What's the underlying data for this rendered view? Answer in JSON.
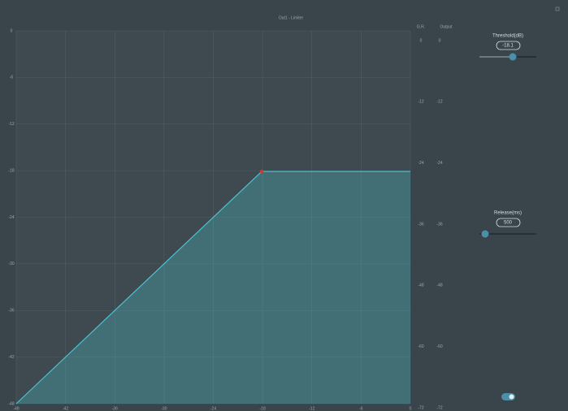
{
  "chart_data": {
    "type": "line",
    "title": "Out1 - Limiter",
    "x": [
      -48,
      -18.1,
      0
    ],
    "values": [
      -48,
      -18.1,
      -18.1
    ],
    "xlim": [
      -48,
      0
    ],
    "ylim": [
      -48,
      0
    ],
    "xticks": [
      -48,
      -42,
      -36,
      -30,
      -24,
      -18,
      -12,
      -6,
      0
    ],
    "yticks": [
      0,
      -6,
      -12,
      -18,
      -24,
      -30,
      -36,
      -42,
      -48
    ],
    "grid": true,
    "color": "#4cc3d1"
  },
  "meters": {
    "columns": [
      "G.R.",
      "Output"
    ],
    "ylim": [
      -72,
      0
    ],
    "ticks": [
      0,
      -12,
      -24,
      -36,
      -48,
      -60,
      -72
    ]
  },
  "controls": {
    "threshold": {
      "label": "Threshold(dB)",
      "value": "-18.1"
    },
    "release": {
      "label": "Release(ms)",
      "value": "500"
    }
  }
}
